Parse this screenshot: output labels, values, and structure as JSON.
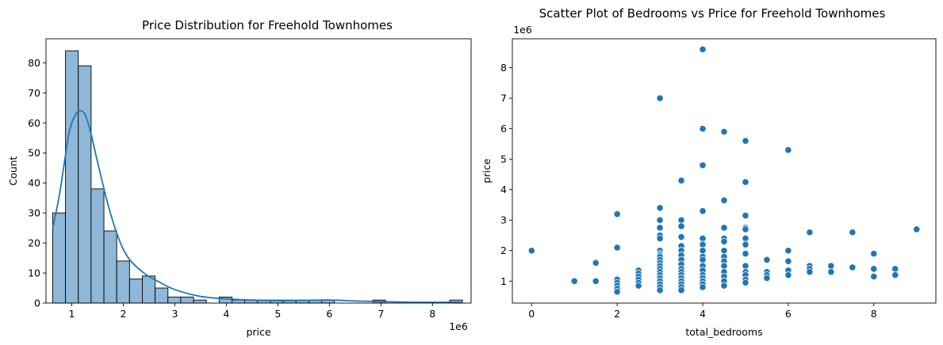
{
  "chart_data": [
    {
      "type": "bar",
      "subtype": "histogram_with_kde",
      "title": "Price Distribution for Freehold Townhomes",
      "xlabel": "price",
      "ylabel": "Count",
      "x_offset_label": "1e6",
      "xlim": [
        0.5,
        8.75
      ],
      "ylim": [
        0,
        88
      ],
      "xticks": [
        1,
        2,
        3,
        4,
        5,
        6,
        7,
        8
      ],
      "yticks": [
        0,
        10,
        20,
        30,
        40,
        50,
        60,
        70,
        80
      ],
      "bar_color": "#8fb7d7",
      "edge_color": "#000000",
      "line_color": "#1f77b4",
      "bin_start": 0.63,
      "bin_width": 0.2485,
      "counts": [
        30,
        84,
        79,
        38,
        24,
        14,
        8,
        9,
        5,
        2,
        2,
        1,
        0,
        2,
        1,
        1,
        1,
        1,
        1,
        1,
        1,
        1,
        0,
        0,
        0,
        1,
        0,
        0,
        0,
        0,
        0,
        1
      ],
      "kde": {
        "x": [
          0.63,
          0.75,
          0.85,
          0.95,
          1.05,
          1.15,
          1.25,
          1.35,
          1.5,
          1.7,
          1.9,
          2.1,
          2.4,
          2.7,
          3.0,
          3.5,
          4.0,
          4.5,
          5.0,
          5.5,
          6.0,
          6.5,
          7.0,
          7.5,
          8.0,
          8.55
        ],
        "y": [
          25,
          35,
          46,
          57,
          62,
          64,
          63,
          58,
          47,
          33,
          22,
          15,
          10,
          7,
          4.5,
          2.2,
          1.4,
          1.0,
          0.8,
          0.9,
          1.0,
          0.7,
          0.5,
          0.3,
          0.25,
          0.3
        ]
      }
    },
    {
      "type": "scatter",
      "title": "Scatter Plot of Bedrooms vs Price for Freehold Townhomes",
      "xlabel": "total_bedrooms",
      "ylabel": "price",
      "y_offset_label": "1e6",
      "xlim": [
        -0.45,
        9.45
      ],
      "ylim": [
        0.28,
        8.95
      ],
      "xticks": [
        0,
        2,
        4,
        6,
        8
      ],
      "yticks": [
        1,
        2,
        3,
        4,
        5,
        6,
        7,
        8
      ],
      "point_color": "#1f77b4",
      "points": [
        [
          0,
          2.0
        ],
        [
          1,
          1.0
        ],
        [
          1.5,
          1.0
        ],
        [
          1.5,
          1.6
        ],
        [
          2,
          3.2
        ],
        [
          2,
          2.1
        ],
        [
          2,
          1.05
        ],
        [
          2,
          0.95
        ],
        [
          2,
          0.85
        ],
        [
          2,
          0.75
        ],
        [
          2,
          0.65
        ],
        [
          2.5,
          1.35
        ],
        [
          2.5,
          1.25
        ],
        [
          2.5,
          1.15
        ],
        [
          2.5,
          1.05
        ],
        [
          2.5,
          0.95
        ],
        [
          2.5,
          0.85
        ],
        [
          3,
          7.0
        ],
        [
          3,
          3.4
        ],
        [
          3,
          3.0
        ],
        [
          3,
          2.75
        ],
        [
          3,
          2.5
        ],
        [
          3,
          2.4
        ],
        [
          3,
          2.0
        ],
        [
          3,
          1.9
        ],
        [
          3,
          1.85
        ],
        [
          3,
          1.8
        ],
        [
          3,
          1.7
        ],
        [
          3,
          1.6
        ],
        [
          3,
          1.5
        ],
        [
          3,
          1.4
        ],
        [
          3,
          1.3
        ],
        [
          3,
          1.2
        ],
        [
          3,
          1.1
        ],
        [
          3,
          1.0
        ],
        [
          3,
          0.9
        ],
        [
          3,
          0.8
        ],
        [
          3,
          0.7
        ],
        [
          3.5,
          4.3
        ],
        [
          3.5,
          3.0
        ],
        [
          3.5,
          2.8
        ],
        [
          3.5,
          2.45
        ],
        [
          3.5,
          2.15
        ],
        [
          3.5,
          2.0
        ],
        [
          3.5,
          1.85
        ],
        [
          3.5,
          1.7
        ],
        [
          3.5,
          1.55
        ],
        [
          3.5,
          1.4
        ],
        [
          3.5,
          1.3
        ],
        [
          3.5,
          1.2
        ],
        [
          3.5,
          1.1
        ],
        [
          3.5,
          1.0
        ],
        [
          3.5,
          0.9
        ],
        [
          3.5,
          0.8
        ],
        [
          3.5,
          0.7
        ],
        [
          4,
          8.6
        ],
        [
          4,
          6.0
        ],
        [
          4,
          4.8
        ],
        [
          4,
          3.3
        ],
        [
          4,
          2.4
        ],
        [
          4,
          2.2
        ],
        [
          4,
          2.0
        ],
        [
          4,
          1.8
        ],
        [
          4,
          1.7
        ],
        [
          4,
          1.5
        ],
        [
          4,
          1.35
        ],
        [
          4,
          1.2
        ],
        [
          4,
          1.1
        ],
        [
          4,
          1.0
        ],
        [
          4,
          0.9
        ],
        [
          4,
          0.8
        ],
        [
          4.5,
          5.9
        ],
        [
          4.5,
          3.65
        ],
        [
          4.5,
          2.75
        ],
        [
          4.5,
          2.4
        ],
        [
          4.5,
          2.3
        ],
        [
          4.5,
          2.0
        ],
        [
          4.5,
          1.8
        ],
        [
          4.5,
          1.65
        ],
        [
          4.5,
          1.5
        ],
        [
          4.5,
          1.3
        ],
        [
          4.5,
          1.15
        ],
        [
          4.5,
          1.0
        ],
        [
          4.5,
          0.85
        ],
        [
          5,
          5.6
        ],
        [
          5,
          4.25
        ],
        [
          5,
          3.15
        ],
        [
          5,
          2.75
        ],
        [
          5,
          2.7
        ],
        [
          5,
          2.4
        ],
        [
          5,
          2.2
        ],
        [
          5,
          1.9
        ],
        [
          5,
          1.5
        ],
        [
          5,
          1.3
        ],
        [
          5,
          1.2
        ],
        [
          5,
          1.05
        ],
        [
          5,
          0.95
        ],
        [
          5.5,
          1.7
        ],
        [
          5.5,
          1.3
        ],
        [
          5.5,
          1.2
        ],
        [
          5.5,
          1.1
        ],
        [
          6,
          5.3
        ],
        [
          6,
          2.0
        ],
        [
          6,
          1.65
        ],
        [
          6,
          1.35
        ],
        [
          6,
          1.2
        ],
        [
          6.5,
          2.6
        ],
        [
          6.5,
          1.5
        ],
        [
          6.5,
          1.4
        ],
        [
          6.5,
          1.3
        ],
        [
          7,
          1.5
        ],
        [
          7,
          1.3
        ],
        [
          7.5,
          2.6
        ],
        [
          7.5,
          1.45
        ],
        [
          8,
          1.9
        ],
        [
          8,
          1.4
        ],
        [
          8,
          1.15
        ],
        [
          8.5,
          1.4
        ],
        [
          8.5,
          1.2
        ],
        [
          9,
          2.7
        ]
      ]
    }
  ]
}
